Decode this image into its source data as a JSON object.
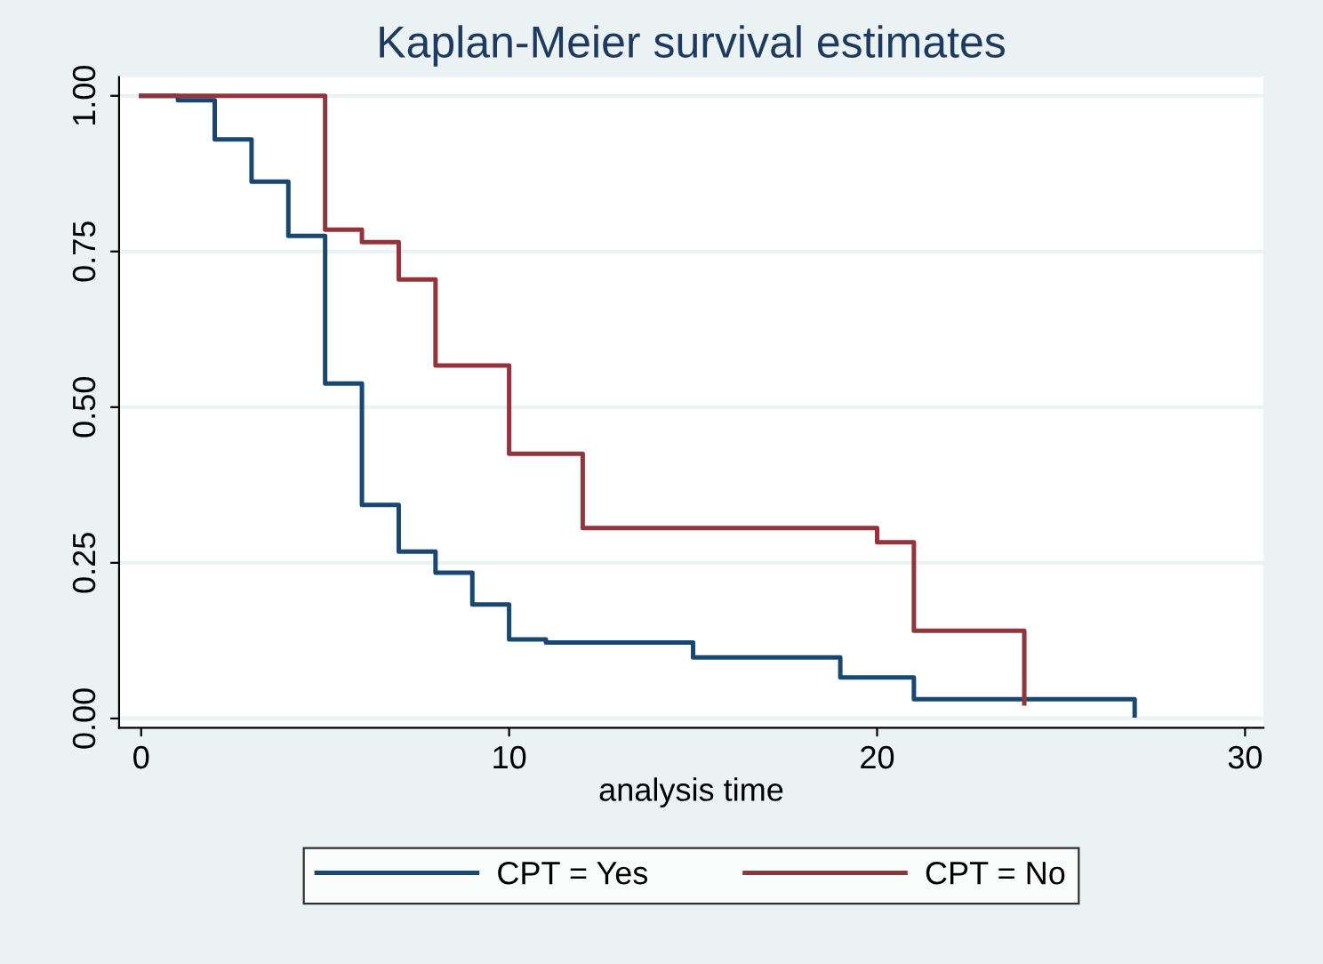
{
  "chart_data": {
    "type": "step",
    "title": "Kaplan-Meier survival estimates",
    "xlabel": "analysis time",
    "series": [
      {
        "name": "CPT = Yes",
        "color": "#1a476f",
        "x": [
          0,
          1,
          2,
          3,
          4,
          5,
          6,
          7,
          8,
          9,
          10,
          11,
          15,
          19,
          21,
          27
        ],
        "values": [
          1.0,
          0.993,
          0.93,
          0.862,
          0.775,
          0.538,
          0.343,
          0.268,
          0.234,
          0.183,
          0.127,
          0.122,
          0.098,
          0.066,
          0.031,
          0.005
        ]
      },
      {
        "name": "CPT = No",
        "color": "#90353b",
        "x": [
          0,
          5,
          6,
          7,
          8,
          10,
          12,
          20,
          21,
          24
        ],
        "values": [
          1.0,
          0.785,
          0.765,
          0.705,
          0.567,
          0.425,
          0.306,
          0.283,
          0.141,
          0.024
        ]
      }
    ],
    "xlim": [
      -0.6,
      30.5
    ],
    "ylim": [
      -0.015,
      1.03
    ],
    "xticks": [
      0,
      10,
      20,
      30
    ],
    "yticks": [
      {
        "value": 0,
        "label": "0.00"
      },
      {
        "value": 0.25,
        "label": "0.25"
      },
      {
        "value": 0.5,
        "label": "0.50"
      },
      {
        "value": 0.75,
        "label": "0.75"
      },
      {
        "value": 1,
        "label": "1.00"
      }
    ],
    "grid": "y",
    "legend": "bottom"
  }
}
